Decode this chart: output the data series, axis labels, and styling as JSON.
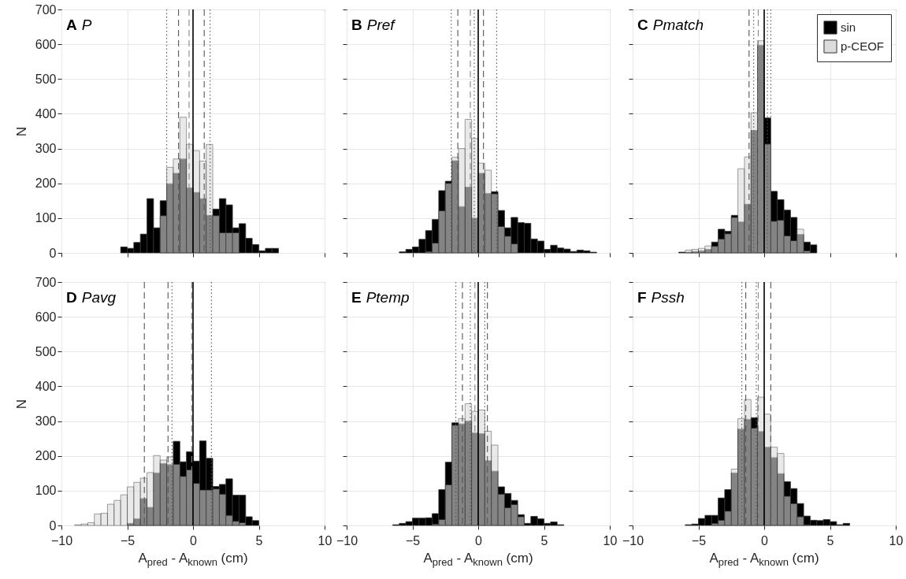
{
  "chart_data": [
    {
      "type": "histogram",
      "title": "A",
      "subtitle": "P",
      "ylabel": "N",
      "tick_labels": "y",
      "grid": true,
      "xlim": [
        -10,
        10
      ],
      "ylim": [
        0,
        700
      ],
      "xticks": [
        -10,
        -5,
        0,
        5,
        10
      ],
      "yticks": [
        0,
        100,
        200,
        300,
        400,
        500,
        600,
        700
      ],
      "bins": [
        -10,
        -9.5,
        -9,
        -8.5,
        -8,
        -7.5,
        -7,
        -6.5,
        -6,
        -5.5,
        -5,
        -4.5,
        -4,
        -3.5,
        -3,
        -2.5,
        -2,
        -1.5,
        -1,
        -0.5,
        0,
        0.5,
        1,
        1.5,
        2,
        2.5,
        3,
        3.5,
        4,
        4.5,
        5,
        5.5,
        6,
        6.5,
        7,
        7.5,
        8,
        8.5,
        9,
        9.5,
        10
      ],
      "series": [
        {
          "color": "#000000",
          "values": [
            0,
            0,
            0,
            0,
            0,
            0,
            0,
            0,
            0,
            17,
            13,
            30,
            54,
            156,
            72,
            150,
            199,
            229,
            270,
            187,
            174,
            156,
            108,
            126,
            156,
            138,
            72,
            84,
            42,
            24,
            6,
            13,
            13,
            0,
            0,
            0,
            0,
            0,
            0,
            0
          ]
        },
        {
          "color": "#dcdcdc",
          "values": [
            0,
            0,
            0,
            0,
            0,
            0,
            0,
            0,
            0,
            0,
            0,
            0,
            0,
            0,
            0,
            107,
            246,
            270,
            390,
            312,
            294,
            264,
            312,
            107,
            58,
            58,
            58,
            0,
            0,
            0,
            0,
            0,
            0,
            0,
            0,
            0,
            0,
            0,
            0,
            0
          ]
        }
      ],
      "ref_lines": [
        {
          "axis": "x",
          "value": -2.0,
          "line_style": "dotted",
          "color": "#555555"
        },
        {
          "axis": "x",
          "value": -1.1,
          "line_style": "dashed",
          "color": "#555555"
        },
        {
          "axis": "x",
          "value": -0.3,
          "line_style": "dashed",
          "color": "#888888"
        },
        {
          "axis": "x",
          "value": 0,
          "line_style": "solid",
          "color": "#000000"
        },
        {
          "axis": "x",
          "value": 0.85,
          "line_style": "dashed",
          "color": "#555555"
        },
        {
          "axis": "x",
          "value": 1.3,
          "line_style": "dotted",
          "color": "#555555"
        }
      ]
    },
    {
      "type": "histogram",
      "title": "B",
      "subtitle": "Pref",
      "tick_labels": false,
      "grid": true,
      "xlim": [
        -10,
        10
      ],
      "ylim": [
        0,
        700
      ],
      "xticks": [
        -10,
        -5,
        0,
        5,
        10
      ],
      "yticks": [
        0,
        100,
        200,
        300,
        400,
        500,
        600,
        700
      ],
      "bins": [
        -10,
        -9.5,
        -9,
        -8.5,
        -8,
        -7.5,
        -7,
        -6.5,
        -6,
        -5.5,
        -5,
        -4.5,
        -4,
        -3.5,
        -3,
        -2.5,
        -2,
        -1.5,
        -1,
        -0.5,
        0,
        0.5,
        1,
        1.5,
        2,
        2.5,
        3,
        3.5,
        4,
        4.5,
        5,
        5.5,
        6,
        6.5,
        7,
        7.5,
        8,
        8.5,
        9,
        9.5,
        10
      ],
      "series": [
        {
          "color": "#000000",
          "values": [
            0,
            0,
            0,
            0,
            0,
            0,
            0,
            0,
            3,
            10,
            17,
            39,
            64,
            96,
            179,
            206,
            265,
            133,
            189,
            100,
            229,
            171,
            176,
            122,
            72,
            102,
            87,
            85,
            40,
            34,
            10,
            22,
            14,
            11,
            4,
            8,
            6,
            2,
            0,
            0
          ]
        },
        {
          "color": "#dcdcdc",
          "values": [
            0,
            0,
            0,
            0,
            0,
            0,
            0,
            0,
            0,
            0,
            0,
            0,
            4,
            28,
            121,
            200,
            275,
            300,
            384,
            329,
            258,
            238,
            170,
            76,
            48,
            26,
            0,
            0,
            0,
            0,
            0,
            0,
            0,
            0,
            0,
            0,
            0,
            0,
            0,
            0
          ]
        }
      ],
      "ref_lines": [
        {
          "axis": "x",
          "value": -2.05,
          "line_style": "dotted",
          "color": "#555555"
        },
        {
          "axis": "x",
          "value": -1.55,
          "line_style": "dashed",
          "color": "#555555"
        },
        {
          "axis": "x",
          "value": -0.6,
          "line_style": "dashed",
          "color": "#888888"
        },
        {
          "axis": "x",
          "value": -0.3,
          "line_style": "dotted",
          "color": "#555555"
        },
        {
          "axis": "x",
          "value": 0,
          "line_style": "solid",
          "color": "#000000"
        },
        {
          "axis": "x",
          "value": 0.4,
          "line_style": "dashed",
          "color": "#555555"
        },
        {
          "axis": "x",
          "value": 1.4,
          "line_style": "dotted",
          "color": "#555555"
        }
      ]
    },
    {
      "type": "histogram",
      "title": "C",
      "subtitle": "Pmatch",
      "tick_labels": false,
      "grid": true,
      "legend": "top right",
      "xlim": [
        -10,
        10
      ],
      "ylim": [
        0,
        700
      ],
      "xticks": [
        -10,
        -5,
        0,
        5,
        10
      ],
      "yticks": [
        0,
        100,
        200,
        300,
        400,
        500,
        600,
        700
      ],
      "bins": [
        -10,
        -9.5,
        -9,
        -8.5,
        -8,
        -7.5,
        -7,
        -6.5,
        -6,
        -5.5,
        -5,
        -4.5,
        -4,
        -3.5,
        -3,
        -2.5,
        -2,
        -1.5,
        -1,
        -0.5,
        0,
        0.5,
        1,
        1.5,
        2,
        2.5,
        3,
        3.5,
        4,
        4.5,
        5,
        5.5,
        6,
        6.5,
        7,
        7.5,
        8,
        8.5,
        9,
        9.5,
        10
      ],
      "series": [
        {
          "name": "sin",
          "color": "#000000",
          "values": [
            0,
            0,
            0,
            0,
            0,
            0,
            0,
            2,
            2,
            4,
            6,
            10,
            31,
            68,
            62,
            108,
            89,
            140,
            352,
            597,
            388,
            177,
            153,
            123,
            102,
            53,
            31,
            23,
            0,
            0,
            0,
            0,
            0,
            0,
            0,
            0,
            0,
            0,
            0,
            0
          ]
        },
        {
          "name": "p-CEOF",
          "color": "#dcdcdc",
          "values": [
            0,
            0,
            0,
            0,
            0,
            0,
            0,
            0,
            8,
            10,
            13,
            20,
            19,
            40,
            55,
            102,
            242,
            276,
            403,
            610,
            313,
            91,
            94,
            49,
            35,
            68,
            6,
            0,
            0,
            0,
            0,
            0,
            0,
            0,
            0,
            0,
            0,
            0,
            0,
            0
          ]
        }
      ],
      "ref_lines": [
        {
          "axis": "x",
          "value": -1.15,
          "line_style": "dashed",
          "color": "#555555"
        },
        {
          "axis": "x",
          "value": -0.8,
          "line_style": "dotted",
          "color": "#555555"
        },
        {
          "axis": "x",
          "value": -0.45,
          "line_style": "dashed",
          "color": "#888888"
        },
        {
          "axis": "x",
          "value": 0,
          "line_style": "solid",
          "color": "#000000"
        },
        {
          "axis": "x",
          "value": 0.25,
          "line_style": "dotted",
          "color": "#555555"
        },
        {
          "axis": "x",
          "value": 0.5,
          "line_style": "dotted",
          "color": "#555555"
        }
      ]
    },
    {
      "type": "histogram",
      "title": "D",
      "subtitle": "Pavg",
      "ylabel": "N",
      "xlabel": "A$_{pred}$ - A$_{known}$ (cm)",
      "grid": true,
      "xlim": [
        -10,
        10
      ],
      "ylim": [
        0,
        700
      ],
      "xticks": [
        -10,
        -5,
        0,
        5,
        10
      ],
      "yticks": [
        0,
        100,
        200,
        300,
        400,
        500,
        600,
        700
      ],
      "bins": [
        -10,
        -9.5,
        -9,
        -8.5,
        -8,
        -7.5,
        -7,
        -6.5,
        -6,
        -5.5,
        -5,
        -4.5,
        -4,
        -3.5,
        -3,
        -2.5,
        -2,
        -1.5,
        -1,
        -0.5,
        0,
        0.5,
        1,
        1.5,
        2,
        2.5,
        3,
        3.5,
        4,
        4.5,
        5,
        5.5,
        6,
        6.5,
        7,
        7.5,
        8,
        8.5,
        9,
        9.5,
        10
      ],
      "series": [
        {
          "color": "#000000",
          "values": [
            0,
            0,
            0,
            0,
            0,
            0,
            0,
            0,
            0,
            0,
            6,
            19,
            77,
            52,
            151,
            178,
            175,
            242,
            183,
            212,
            185,
            243,
            193,
            112,
            118,
            134,
            87,
            87,
            25,
            14,
            0,
            0,
            0,
            0,
            0,
            0,
            0,
            0,
            0,
            0
          ]
        },
        {
          "color": "#dcdcdc",
          "values": [
            0,
            0,
            2,
            4,
            8,
            33,
            35,
            61,
            72,
            88,
            111,
            124,
            136,
            152,
            201,
            188,
            197,
            176,
            141,
            160,
            121,
            102,
            102,
            105,
            90,
            29,
            12,
            8,
            0,
            0,
            0,
            0,
            0,
            0,
            0,
            0,
            0,
            0,
            0,
            0
          ]
        }
      ],
      "ref_lines": [
        {
          "axis": "x",
          "value": -3.7,
          "line_style": "dashed",
          "color": "#555555"
        },
        {
          "axis": "x",
          "value": -1.9,
          "line_style": "dashed",
          "color": "#555555"
        },
        {
          "axis": "x",
          "value": -1.6,
          "line_style": "dotted",
          "color": "#555555"
        },
        {
          "axis": "x",
          "value": -0.1,
          "line_style": "dashed",
          "color": "#888888"
        },
        {
          "axis": "x",
          "value": 0,
          "line_style": "solid",
          "color": "#000000"
        },
        {
          "axis": "x",
          "value": 1.4,
          "line_style": "dotted",
          "color": "#555555"
        }
      ]
    },
    {
      "type": "histogram",
      "title": "E",
      "subtitle": "Ptemp",
      "xlabel": "A$_{pred}$ - A$_{known}$ (cm)",
      "tick_labels": "x",
      "grid": true,
      "xlim": [
        -10,
        10
      ],
      "ylim": [
        0,
        700
      ],
      "xticks": [
        -10,
        -5,
        0,
        5,
        10
      ],
      "yticks": [
        0,
        100,
        200,
        300,
        400,
        500,
        600,
        700
      ],
      "bins": [
        -10,
        -9.5,
        -9,
        -8.5,
        -8,
        -7.5,
        -7,
        -6.5,
        -6,
        -5.5,
        -5,
        -4.5,
        -4,
        -3.5,
        -3,
        -2.5,
        -2,
        -1.5,
        -1,
        -0.5,
        0,
        0.5,
        1,
        1.5,
        2,
        2.5,
        3,
        3.5,
        4,
        4.5,
        5,
        5.5,
        6,
        6.5,
        7,
        7.5,
        8,
        8.5,
        9,
        9.5,
        10
      ],
      "series": [
        {
          "color": "#000000",
          "values": [
            0,
            0,
            0,
            0,
            0,
            0,
            0,
            2,
            6,
            11,
            21,
            21,
            22,
            34,
            103,
            182,
            295,
            292,
            300,
            266,
            264,
            186,
            156,
            111,
            92,
            72,
            31,
            6,
            26,
            19,
            6,
            10,
            2,
            0,
            0,
            0,
            0,
            0,
            0,
            0
          ]
        },
        {
          "color": "#dcdcdc",
          "values": [
            0,
            0,
            0,
            0,
            0,
            0,
            0,
            0,
            0,
            0,
            0,
            0,
            0,
            4,
            17,
            117,
            288,
            307,
            350,
            328,
            332,
            271,
            231,
            90,
            51,
            60,
            25,
            0,
            0,
            0,
            0,
            0,
            0,
            0,
            0,
            0,
            0,
            0,
            0,
            0
          ]
        }
      ],
      "ref_lines": [
        {
          "axis": "x",
          "value": -1.7,
          "line_style": "dotted",
          "color": "#555555"
        },
        {
          "axis": "x",
          "value": -1.2,
          "line_style": "dashed",
          "color": "#555555"
        },
        {
          "axis": "x",
          "value": -0.6,
          "line_style": "dotted",
          "color": "#555555"
        },
        {
          "axis": "x",
          "value": -0.25,
          "line_style": "dashed",
          "color": "#888888"
        },
        {
          "axis": "x",
          "value": 0,
          "line_style": "solid",
          "color": "#000000"
        },
        {
          "axis": "x",
          "value": 0.5,
          "line_style": "dotted",
          "color": "#555555"
        },
        {
          "axis": "x",
          "value": 0.7,
          "line_style": "dashed",
          "color": "#555555"
        }
      ]
    },
    {
      "type": "histogram",
      "title": "F",
      "subtitle": "Pssh",
      "xlabel": "A$_{pred}$ - A$_{known}$ (cm)",
      "tick_labels": "x",
      "grid": true,
      "xlim": [
        -10,
        10
      ],
      "ylim": [
        0,
        700
      ],
      "xticks": [
        -10,
        -5,
        0,
        5,
        10
      ],
      "yticks": [
        0,
        100,
        200,
        300,
        400,
        500,
        600,
        700
      ],
      "bins": [
        -10,
        -9.5,
        -9,
        -8.5,
        -8,
        -7.5,
        -7,
        -6.5,
        -6,
        -5.5,
        -5,
        -4.5,
        -4,
        -3.5,
        -3,
        -2.5,
        -2,
        -1.5,
        -1,
        -0.5,
        0,
        0.5,
        1,
        1.5,
        2,
        2.5,
        3,
        3.5,
        4,
        4.5,
        5,
        5.5,
        6,
        6.5,
        7,
        7.5,
        8,
        8.5,
        9,
        9.5,
        10
      ],
      "series": [
        {
          "color": "#000000",
          "values": [
            0,
            0,
            0,
            0,
            0,
            0,
            0,
            0,
            2,
            4,
            20,
            29,
            29,
            79,
            103,
            151,
            277,
            305,
            310,
            270,
            225,
            195,
            149,
            126,
            106,
            63,
            27,
            15,
            14,
            17,
            11,
            2,
            6,
            0,
            0,
            0,
            0,
            0,
            0,
            0
          ]
        },
        {
          "color": "#dcdcdc",
          "values": [
            0,
            0,
            0,
            0,
            0,
            0,
            0,
            0,
            0,
            0,
            0,
            0,
            6,
            15,
            41,
            162,
            307,
            362,
            280,
            369,
            320,
            225,
            207,
            84,
            63,
            25,
            2,
            0,
            0,
            0,
            0,
            0,
            0,
            0,
            0,
            0,
            0,
            0,
            0,
            0
          ]
        }
      ],
      "ref_lines": [
        {
          "axis": "x",
          "value": -1.7,
          "line_style": "dotted",
          "color": "#555555"
        },
        {
          "axis": "x",
          "value": -1.4,
          "line_style": "dashed",
          "color": "#555555"
        },
        {
          "axis": "x",
          "value": -0.6,
          "line_style": "dotted",
          "color": "#555555"
        },
        {
          "axis": "x",
          "value": -0.45,
          "line_style": "dashed",
          "color": "#888888"
        },
        {
          "axis": "x",
          "value": 0,
          "line_style": "solid",
          "color": "#000000"
        },
        {
          "axis": "x",
          "value": 0.5,
          "line_style": "dashed",
          "color": "#555555"
        }
      ]
    }
  ]
}
